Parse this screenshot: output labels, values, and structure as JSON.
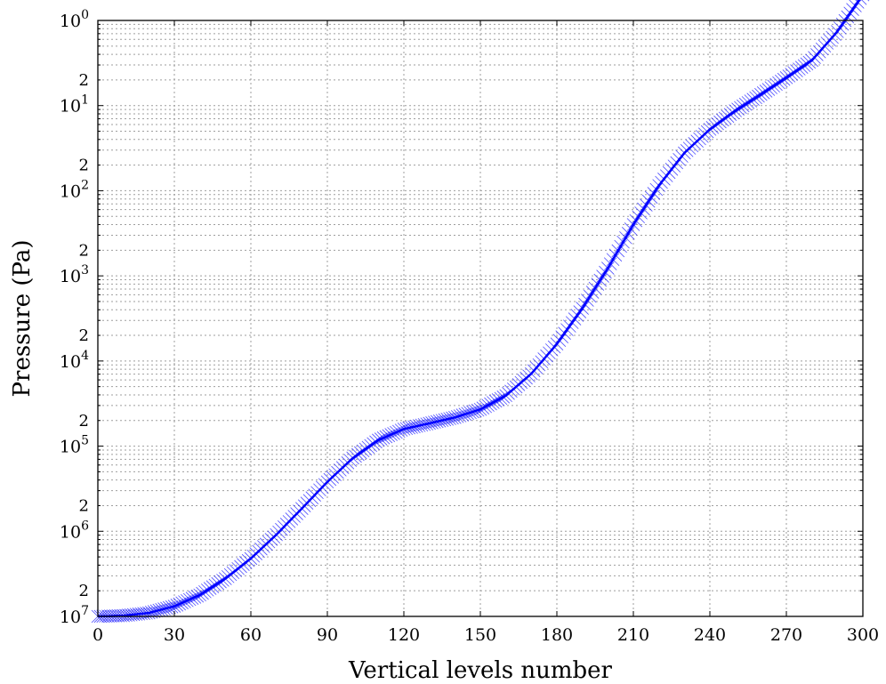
{
  "chart_data": {
    "type": "line",
    "title": "",
    "xlabel": "Vertical levels number",
    "ylabel": "Pressure (Pa)",
    "xlim": [
      0,
      300
    ],
    "ylim": [
      10000000,
      1
    ],
    "yscale": "log",
    "y_inverted": true,
    "grid": true,
    "x_ticks": [
      0,
      30,
      60,
      90,
      120,
      150,
      180,
      210,
      240,
      270,
      300
    ],
    "y_ticks": [
      {
        "value": 1,
        "base": "10",
        "exp": "0"
      },
      {
        "value": 10,
        "base": "10",
        "exp": "1"
      },
      {
        "value": 100,
        "base": "10",
        "exp": "2"
      },
      {
        "value": 1000,
        "base": "10",
        "exp": "3"
      },
      {
        "value": 10000,
        "base": "10",
        "exp": "4"
      },
      {
        "value": 100000,
        "base": "10",
        "exp": "5"
      },
      {
        "value": 1000000,
        "base": "10",
        "exp": "6"
      },
      {
        "value": 10000000,
        "base": "10",
        "exp": "7"
      }
    ],
    "y_minor_label": "2",
    "color": "#0000ff",
    "marker": "x",
    "note_y_tick_labels": "The printed tick labels read 10^0 (top) to 10^7 (bottom); values are stored as the pressure (Pa) the axis labels show.",
    "series": [
      {
        "x": [
          0,
          10,
          20,
          30,
          40,
          50,
          60,
          70,
          80,
          90,
          100,
          110,
          120,
          130,
          140,
          150,
          160,
          170,
          180,
          190,
          200,
          210,
          220,
          230,
          240,
          250,
          260,
          270,
          280,
          290,
          300
        ],
        "y": [
          10000000,
          9800000,
          9100000,
          7600000,
          5600000,
          3600000,
          2090000,
          1096000,
          540000,
          263000,
          138000,
          85000,
          63000,
          54000,
          46000,
          37000,
          25500,
          14100,
          6310,
          2400,
          813,
          250,
          87,
          36,
          19,
          11.5,
          7.4,
          4.7,
          2.95,
          1.35,
          0.5
        ]
      }
    ]
  }
}
